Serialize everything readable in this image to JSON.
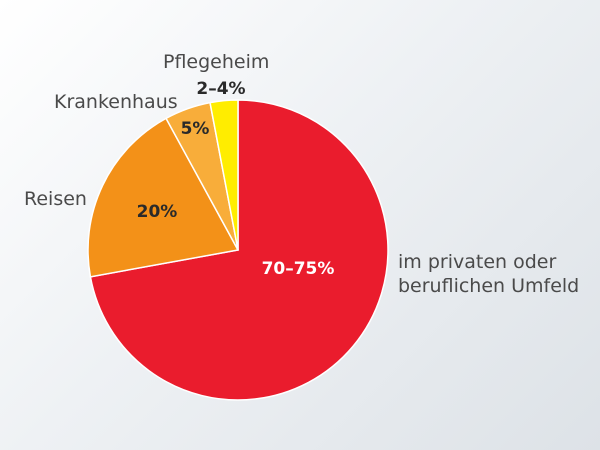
{
  "chart_data": {
    "type": "pie",
    "slices": [
      {
        "category": "im privaten oder beruflichen Umfeld",
        "label_lines": [
          "im privaten oder",
          "beruflichen Umfeld"
        ],
        "value_label": "70–75%",
        "value": 72.5,
        "color": "#ea1c2d",
        "value_color": "#ffffff"
      },
      {
        "category": "Reisen",
        "label_lines": [
          "Reisen"
        ],
        "value_label": "20%",
        "value": 20,
        "color": "#f39118",
        "value_color": "#2a2a2a"
      },
      {
        "category": "Krankenhaus",
        "label_lines": [
          "Krankenhaus"
        ],
        "value_label": "5%",
        "value": 5,
        "color": "#f8ad3a",
        "value_color": "#2a2a2a"
      },
      {
        "category": "Pflegeheim",
        "label_lines": [
          "Pflegeheim"
        ],
        "value_label": "2–4%",
        "value": 3,
        "color": "#ffed00",
        "value_color": "#2a2a2a"
      }
    ]
  }
}
